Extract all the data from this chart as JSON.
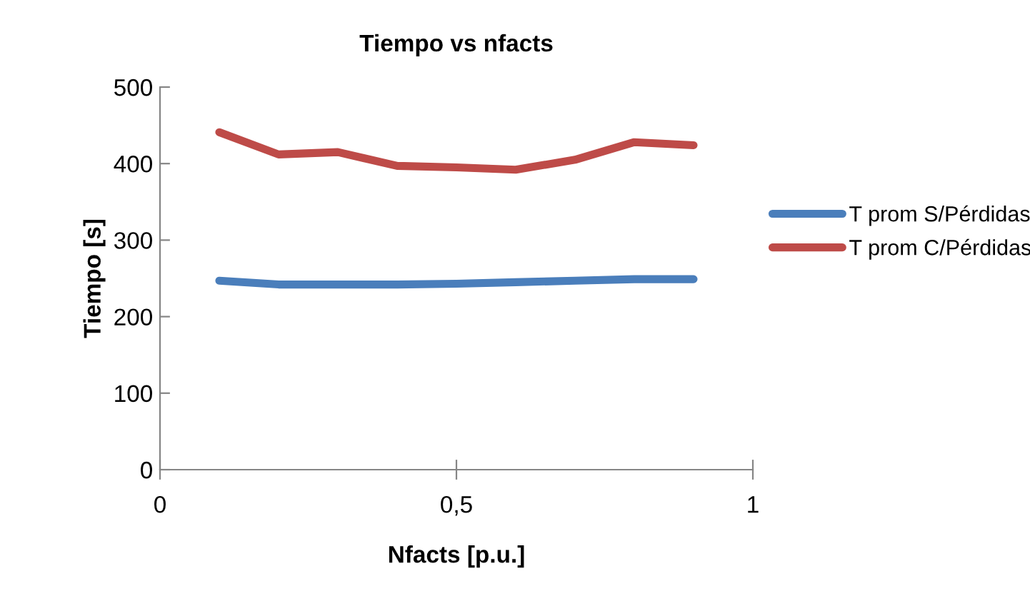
{
  "chart_data": {
    "type": "line",
    "title": "Tiempo vs nfacts",
    "xlabel": "Nfacts [p.u.]",
    "ylabel": "Tiempo [s]",
    "x": [
      0.1,
      0.2,
      0.3,
      0.4,
      0.5,
      0.6,
      0.7,
      0.8,
      0.9
    ],
    "series": [
      {
        "name": "T prom S/Pérdidas",
        "color": "#4a7ebb",
        "values": [
          247,
          242,
          242,
          242,
          243,
          245,
          247,
          249,
          249
        ]
      },
      {
        "name": "T prom C/Pérdidas",
        "color": "#be4b48",
        "values": [
          441,
          412,
          415,
          397,
          395,
          392,
          405,
          428,
          424
        ]
      }
    ],
    "xlim": [
      0,
      1
    ],
    "xticks": [
      0,
      {
        "value": 0.5,
        "label": "0,5"
      },
      1
    ],
    "ylim": [
      0,
      500
    ],
    "yticks": [
      0,
      100,
      200,
      300,
      400,
      500
    ],
    "grid": false,
    "legend": "right",
    "marker": "none",
    "line_style": "solid"
  }
}
